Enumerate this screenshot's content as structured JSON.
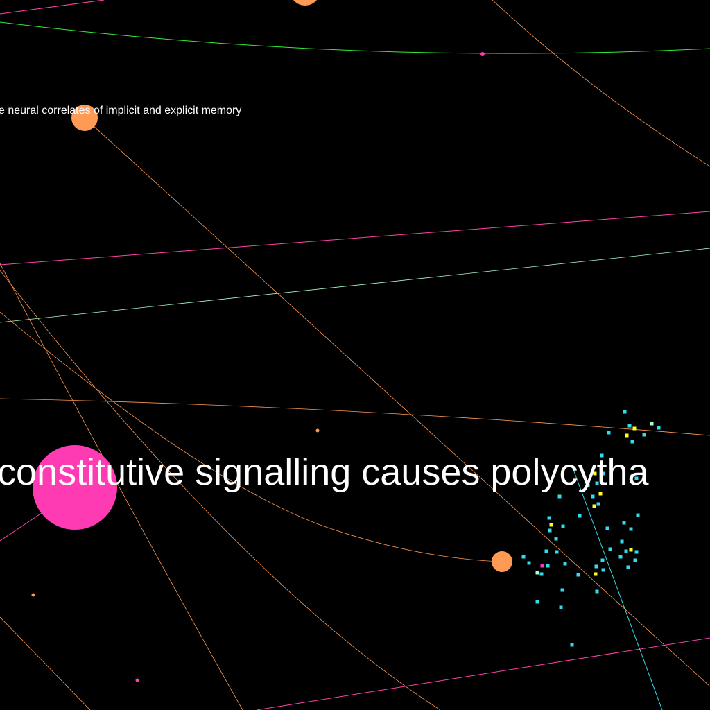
{
  "graph": {
    "background": "#000000",
    "labels": {
      "small": "e neural correlates of implicit and explicit memory",
      "large": "constitutive signalling causes polycytha"
    },
    "colors": {
      "orange": "#ff9a55",
      "magenta": "#ff3bb3",
      "green": "#33ee33",
      "cyan": "#33ddee",
      "yellow": "#ffff22",
      "mint": "#aaffcc",
      "pink": "#ff44aa"
    }
  }
}
